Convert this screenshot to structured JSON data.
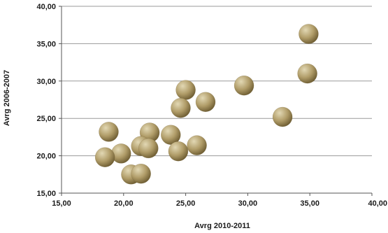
{
  "chart_data": {
    "type": "scatter",
    "xlabel": "Avrg 2010-2011",
    "ylabel": "Avrg 2006-2007",
    "xlim": [
      15,
      40
    ],
    "ylim": [
      15,
      40
    ],
    "x_ticks": [
      "15,00",
      "20,00",
      "25,00",
      "30,00",
      "35,00",
      "40,00"
    ],
    "y_ticks": [
      "15,00",
      "20,00",
      "25,00",
      "30,00",
      "35,00",
      "40,00"
    ],
    "grid": "horizontal",
    "legend": "none",
    "colors": {
      "bubble_light": "#e2d8b4",
      "bubble_mid": "#b09c68",
      "bubble_dark": "#6b5a30",
      "grid": "#9a9a9a",
      "axis": "#555555"
    },
    "points": [
      {
        "x": 34.9,
        "y": 36.3
      },
      {
        "x": 34.8,
        "y": 31.0
      },
      {
        "x": 29.7,
        "y": 29.4
      },
      {
        "x": 32.8,
        "y": 25.2
      },
      {
        "x": 25.0,
        "y": 28.8
      },
      {
        "x": 26.6,
        "y": 27.2
      },
      {
        "x": 24.6,
        "y": 26.4
      },
      {
        "x": 18.8,
        "y": 23.2
      },
      {
        "x": 22.1,
        "y": 23.1
      },
      {
        "x": 23.8,
        "y": 22.8
      },
      {
        "x": 21.4,
        "y": 21.3
      },
      {
        "x": 22.0,
        "y": 21.0
      },
      {
        "x": 25.9,
        "y": 21.4
      },
      {
        "x": 24.4,
        "y": 20.6
      },
      {
        "x": 19.8,
        "y": 20.3
      },
      {
        "x": 18.5,
        "y": 19.8
      },
      {
        "x": 20.6,
        "y": 17.5
      },
      {
        "x": 21.4,
        "y": 17.6
      }
    ]
  }
}
